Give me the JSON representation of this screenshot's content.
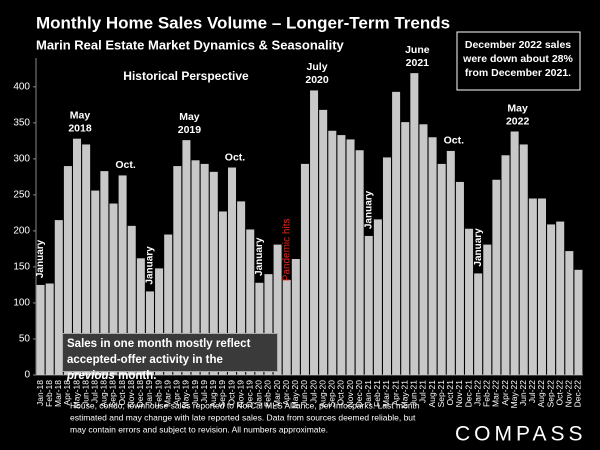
{
  "chart_data": {
    "type": "bar",
    "title": "Monthly Home Sales Volume – Longer-Term Trends",
    "subtitle": "Marin Real Estate Market Dynamics & Seasonality",
    "annotation": "Historical Perspective",
    "callout": [
      "December  2022 sales",
      "were down about 28%",
      "from December 2021."
    ],
    "note": {
      "start": "Sales in one month mostly reflect accepted-offer activity in the ",
      "emphasis": "previous",
      "end": " month."
    },
    "event_label": "Pandemic hits",
    "event_color": "#e0281e",
    "month_labels": [
      {
        "text": [
          "January"
        ]
      },
      {
        "text": [
          "May",
          "2018"
        ]
      },
      {
        "text": [
          "Oct."
        ]
      },
      {
        "text": [
          "January"
        ]
      },
      {
        "text": [
          "May",
          "2019"
        ]
      },
      {
        "text": [
          "Oct."
        ]
      },
      {
        "text": [
          "January"
        ]
      },
      {
        "text": [
          "July",
          "2020"
        ]
      },
      {
        "text": [
          "January"
        ]
      },
      {
        "text": [
          "June",
          "2021"
        ]
      },
      {
        "text": [
          "Oct."
        ]
      },
      {
        "text": [
          "January"
        ]
      },
      {
        "text": [
          "May",
          "2022"
        ]
      }
    ],
    "footnote": [
      "House, condo, townhouse sales reported to NorCal MLS Alliance, per Infosparks. Last month",
      "estimated and may change with late reported sales. Data from sources deemed reliable, but",
      "may contain errors and subject to revision. All numbers approximate."
    ],
    "brand": "COMPASS",
    "color": "#c8c8c8",
    "categories": [
      "Jan-18",
      "Feb-18",
      "Mar-18",
      "Apr-18",
      "May-18",
      "Jun-18",
      "Jul-18",
      "Aug-18",
      "Sep-18",
      "Oct-18",
      "Nov-18",
      "Dec-18",
      "Jan-19",
      "Feb-19",
      "Mar-19",
      "Apr-19",
      "May-19",
      "Jun-19",
      "Jul-19",
      "Aug-19",
      "Sep-19",
      "Oct-19",
      "Nov-19",
      "Dec-19",
      "Jan-20",
      "Feb-20",
      "Mar-20",
      "Apr-20",
      "May-20",
      "Jun-20",
      "Jul-20",
      "Aug-20",
      "Sep-20",
      "Oct-20",
      "Nov-20",
      "Dec-20",
      "Jan-21",
      "Feb-21",
      "Mar-21",
      "Apr-21",
      "May-21",
      "Jun-21",
      "Jul-21",
      "Aug-21",
      "Sep-21",
      "Oct-21",
      "Nov-21",
      "Dec-21",
      "Jan-22",
      "Feb-22",
      "Mar-22",
      "Apr-22",
      "May-22",
      "Jun-22",
      "Jul-22",
      "Aug-22",
      "Sep-22",
      "Oct-22",
      "Nov-22",
      "Dec-22"
    ],
    "values": [
      125,
      127,
      215,
      290,
      328,
      320,
      256,
      283,
      238,
      277,
      207,
      162,
      116,
      148,
      195,
      290,
      326,
      298,
      293,
      282,
      227,
      288,
      241,
      202,
      128,
      140,
      181,
      132,
      161,
      293,
      395,
      368,
      339,
      333,
      327,
      312,
      193,
      216,
      302,
      393,
      351,
      419,
      348,
      330,
      293,
      311,
      268,
      203,
      141,
      181,
      271,
      305,
      338,
      320,
      245,
      245,
      209,
      213,
      172,
      146
    ],
    "ylim": [
      0,
      440
    ],
    "yticks": [
      0,
      50,
      100,
      150,
      200,
      250,
      300,
      350,
      400
    ],
    "grid": false
  }
}
